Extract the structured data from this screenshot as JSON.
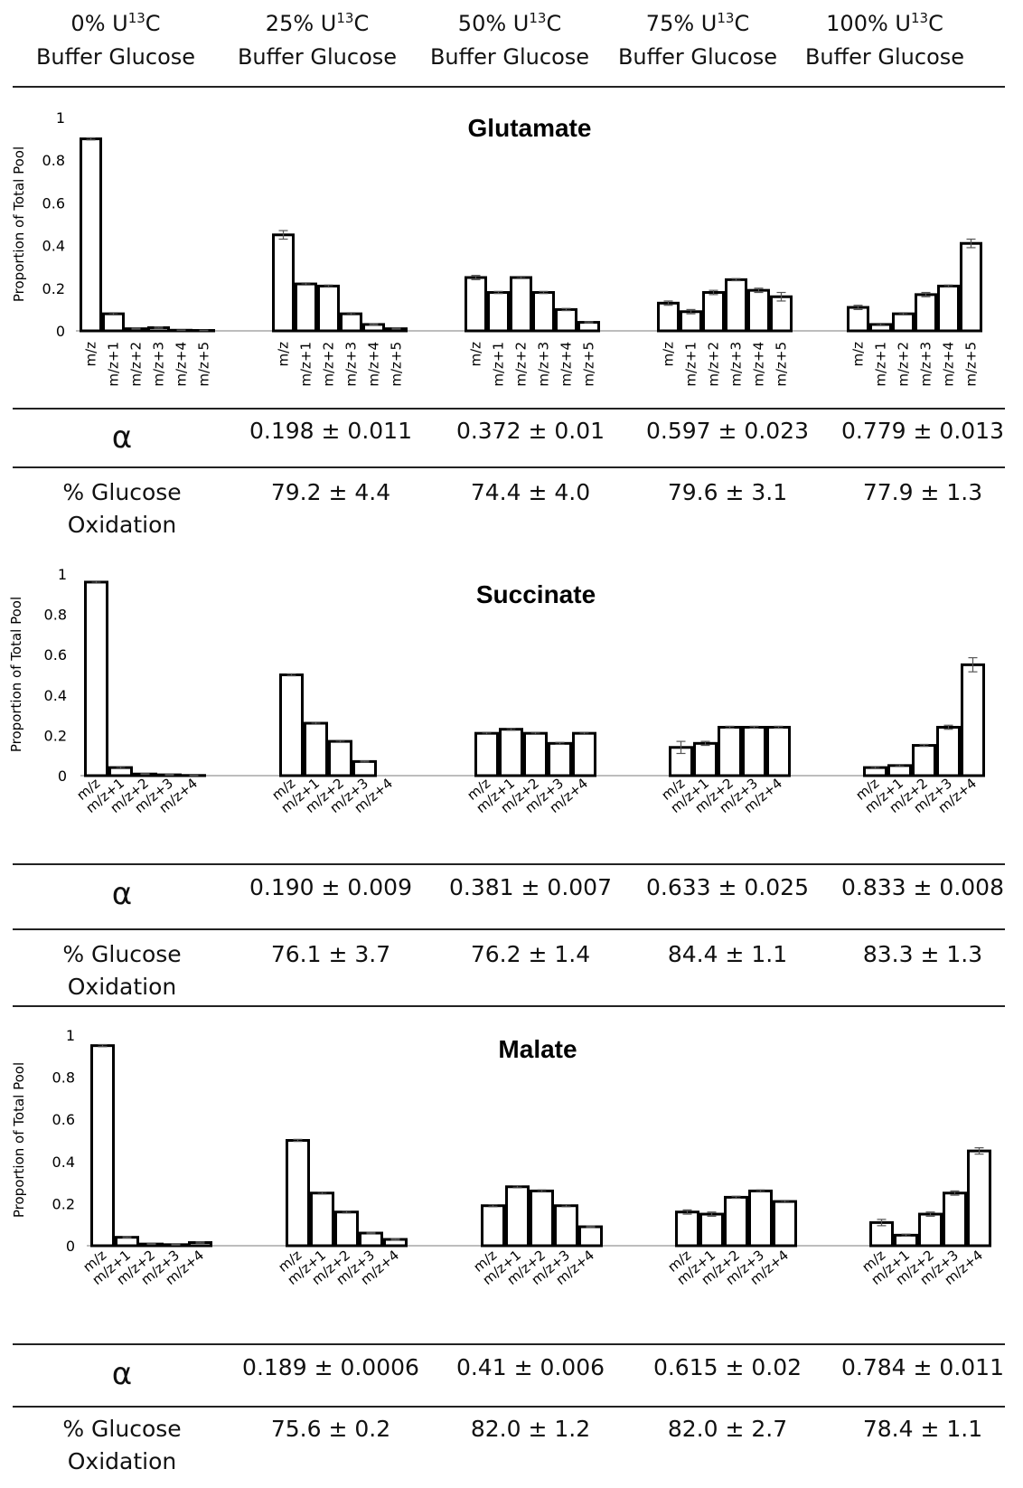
{
  "headers": [
    {
      "pct": "0% U",
      "sup": "13",
      "tail": "C",
      "line2": "Buffer Glucose"
    },
    {
      "pct": "25% U",
      "sup": "13",
      "tail": "C",
      "line2": "Buffer Glucose"
    },
    {
      "pct": "50% U",
      "sup": "13",
      "tail": "C",
      "line2": "Buffer Glucose"
    },
    {
      "pct": "75% U",
      "sup": "13",
      "tail": "C",
      "line2": "Buffer Glucose"
    },
    {
      "pct": "100% U",
      "sup": "13",
      "tail": "C",
      "line2": "Buffer Glucose"
    }
  ],
  "sections": [
    {
      "alpha_symbol": "α",
      "alpha": [
        "0.198 ± 0.011",
        "0.372 ± 0.01",
        "0.597 ± 0.023",
        "0.779 ± 0.013"
      ],
      "oxidation_label": [
        "% Glucose",
        "Oxidation"
      ],
      "oxidation": [
        "79.2 ± 4.4",
        "74.4 ± 4.0",
        "79.6 ± 3.1",
        "77.9 ± 1.3"
      ]
    },
    {
      "alpha_symbol": "α",
      "alpha": [
        "0.190 ± 0.009",
        "0.381 ± 0.007",
        "0.633 ± 0.025",
        "0.833 ± 0.008"
      ],
      "oxidation_label": [
        "% Glucose",
        "Oxidation"
      ],
      "oxidation": [
        "76.1 ± 3.7",
        "76.2 ± 1.4",
        "84.4 ± 1.1",
        "83.3 ± 1.3"
      ]
    },
    {
      "alpha_symbol": "α",
      "alpha": [
        "0.189 ± 0.0006",
        "0.41 ± 0.006",
        "0.615 ± 0.02",
        "0.784 ± 0.011"
      ],
      "oxidation_label": [
        "% Glucose",
        "Oxidation"
      ],
      "oxidation": [
        "75.6 ± 0.2",
        "82.0 ± 1.2",
        "82.0 ± 2.7",
        "78.4 ± 1.1"
      ]
    }
  ],
  "chart_data": [
    {
      "type": "bar",
      "title": "Glutamate",
      "ylabel": "Proportion of Total Pool",
      "ylim": [
        0,
        1
      ],
      "yticks": [
        0,
        0.2,
        0.4,
        0.6,
        0.8,
        1
      ],
      "ytick_labels": [
        "0",
        "0.2",
        "0.4",
        "0.6",
        "0.8",
        "1"
      ],
      "categories": [
        "m/z",
        "m/z+1",
        "m/z+2",
        "m/z+3",
        "m/z+4",
        "m/z+5"
      ],
      "tick_rotation": 90,
      "groups": [
        {
          "values": [
            0.9,
            0.08,
            0.01,
            0.015,
            0.003,
            0.002
          ],
          "errors": [
            0.005,
            0.005,
            0.002,
            0.003,
            0.001,
            0.001
          ]
        },
        {
          "values": [
            0.45,
            0.22,
            0.21,
            0.08,
            0.03,
            0.01
          ],
          "errors": [
            0.02,
            0.005,
            0.005,
            0.005,
            0.003,
            0.002
          ]
        },
        {
          "values": [
            0.25,
            0.18,
            0.25,
            0.18,
            0.1,
            0.04
          ],
          "errors": [
            0.01,
            0.005,
            0.005,
            0.005,
            0.005,
            0.003
          ]
        },
        {
          "values": [
            0.13,
            0.09,
            0.18,
            0.24,
            0.19,
            0.16
          ],
          "errors": [
            0.01,
            0.01,
            0.01,
            0.005,
            0.01,
            0.02
          ]
        },
        {
          "values": [
            0.11,
            0.03,
            0.08,
            0.17,
            0.21,
            0.41
          ],
          "errors": [
            0.01,
            0.005,
            0.005,
            0.01,
            0.005,
            0.02
          ]
        }
      ]
    },
    {
      "type": "bar",
      "title": "Succinate",
      "ylabel": "Proportion of Total Pool",
      "ylim": [
        0,
        1
      ],
      "yticks": [
        0,
        0.2,
        0.4,
        0.6,
        0.8,
        1
      ],
      "ytick_labels": [
        "0",
        "0.2",
        "0.4",
        "0.6",
        "0.8",
        "1"
      ],
      "categories": [
        "m/z",
        "m/z+1",
        "m/z+2",
        "m/z+3",
        "m/z+4"
      ],
      "tick_rotation": 40,
      "groups": [
        {
          "values": [
            0.96,
            0.04,
            0.008,
            0.004,
            0.001
          ],
          "errors": [
            0.005,
            0.005,
            0.002,
            0.002,
            0.001
          ]
        },
        {
          "values": [
            0.5,
            0.26,
            0.17,
            0.07,
            0.0
          ],
          "errors": [
            0.005,
            0.005,
            0.005,
            0.003,
            0.0
          ]
        },
        {
          "values": [
            0.21,
            0.23,
            0.21,
            0.16,
            0.21
          ],
          "errors": [
            0.005,
            0.005,
            0.005,
            0.005,
            0.005
          ]
        },
        {
          "values": [
            0.14,
            0.16,
            0.24,
            0.24,
            0.24
          ],
          "errors": [
            0.03,
            0.01,
            0.005,
            0.005,
            0.005
          ]
        },
        {
          "values": [
            0.04,
            0.05,
            0.15,
            0.24,
            0.55
          ],
          "errors": [
            0.005,
            0.005,
            0.005,
            0.01,
            0.035
          ]
        }
      ]
    },
    {
      "type": "bar",
      "title": "Malate",
      "ylabel": "Proportion of Total Pool",
      "ylim": [
        0,
        1
      ],
      "yticks": [
        0,
        0.2,
        0.4,
        0.6,
        0.8,
        1
      ],
      "ytick_labels": [
        "0",
        "0.2",
        "0.4",
        "0.6",
        "0.8",
        "1"
      ],
      "categories": [
        "m/z",
        "m/z+1",
        "m/z+2",
        "m/z+3",
        "m/z+4"
      ],
      "tick_rotation": 40,
      "groups": [
        {
          "values": [
            0.95,
            0.04,
            0.008,
            0.005,
            0.015
          ],
          "errors": [
            0.005,
            0.003,
            0.002,
            0.002,
            0.003
          ]
        },
        {
          "values": [
            0.5,
            0.25,
            0.16,
            0.06,
            0.03
          ],
          "errors": [
            0.005,
            0.005,
            0.005,
            0.003,
            0.003
          ]
        },
        {
          "values": [
            0.19,
            0.28,
            0.26,
            0.19,
            0.09
          ],
          "errors": [
            0.005,
            0.005,
            0.005,
            0.005,
            0.003
          ]
        },
        {
          "values": [
            0.16,
            0.15,
            0.23,
            0.26,
            0.21
          ],
          "errors": [
            0.01,
            0.01,
            0.005,
            0.005,
            0.005
          ]
        },
        {
          "values": [
            0.11,
            0.05,
            0.15,
            0.25,
            0.45
          ],
          "errors": [
            0.015,
            0.005,
            0.01,
            0.01,
            0.015
          ]
        }
      ]
    }
  ]
}
